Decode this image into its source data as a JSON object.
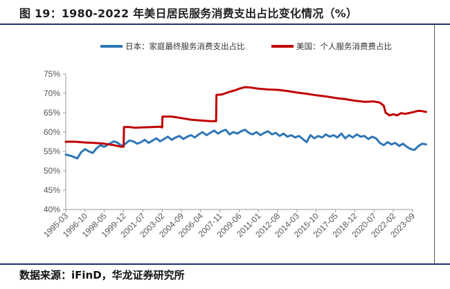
{
  "title": "图 19：1980-2022 年美日居民服务消费支出占比变化情况（%）",
  "source": "数据来源：iFinD，华龙证券研究所",
  "chart_data": {
    "type": "line",
    "x_labels": [
      "1995-03",
      "1996-10",
      "1998-05",
      "1999-12",
      "2001-07",
      "2003-02",
      "2004-09",
      "2006-04",
      "2007-11",
      "2009-06",
      "2011-01",
      "2012-08",
      "2014-03",
      "2015-10",
      "2017-05",
      "2018-12",
      "2020-07",
      "2022-02",
      "2023-09"
    ],
    "y_ticks": [
      "40%",
      "45%",
      "50%",
      "55%",
      "60%",
      "65%",
      "70%",
      "75%"
    ],
    "ylim": [
      40,
      75
    ],
    "grid": false,
    "legend_position": "top",
    "series": [
      {
        "name": "日本：家庭最终服务消费支出占比",
        "color": "#2e75b6",
        "points": [
          [
            0,
            54.2
          ],
          [
            0.3,
            53.8
          ],
          [
            0.6,
            53.2
          ],
          [
            0.8,
            54.8
          ],
          [
            1.0,
            55.6
          ],
          [
            1.2,
            55.0
          ],
          [
            1.4,
            54.6
          ],
          [
            1.6,
            55.8
          ],
          [
            1.8,
            56.6
          ],
          [
            2.0,
            56.2
          ],
          [
            2.2,
            56.8
          ],
          [
            2.5,
            57.6
          ],
          [
            2.7,
            57.2
          ],
          [
            2.9,
            56.4
          ],
          [
            3.1,
            57.0
          ],
          [
            3.3,
            57.8
          ],
          [
            3.5,
            57.6
          ],
          [
            3.7,
            57.0
          ],
          [
            3.9,
            57.4
          ],
          [
            4.1,
            58.0
          ],
          [
            4.3,
            57.2
          ],
          [
            4.5,
            57.8
          ],
          [
            4.7,
            58.4
          ],
          [
            4.9,
            57.6
          ],
          [
            5.1,
            58.2
          ],
          [
            5.3,
            58.8
          ],
          [
            5.5,
            58.0
          ],
          [
            5.7,
            58.6
          ],
          [
            5.9,
            59.0
          ],
          [
            6.1,
            58.2
          ],
          [
            6.3,
            58.8
          ],
          [
            6.5,
            59.2
          ],
          [
            6.7,
            58.6
          ],
          [
            6.9,
            59.4
          ],
          [
            7.1,
            60.0
          ],
          [
            7.3,
            59.2
          ],
          [
            7.5,
            59.8
          ],
          [
            7.7,
            60.4
          ],
          [
            7.9,
            59.6
          ],
          [
            8.1,
            60.2
          ],
          [
            8.3,
            60.6
          ],
          [
            8.5,
            59.4
          ],
          [
            8.7,
            60.0
          ],
          [
            8.9,
            59.6
          ],
          [
            9.1,
            60.2
          ],
          [
            9.3,
            60.6
          ],
          [
            9.5,
            59.8
          ],
          [
            9.7,
            59.4
          ],
          [
            9.9,
            60.0
          ],
          [
            10.1,
            59.2
          ],
          [
            10.3,
            59.8
          ],
          [
            10.5,
            60.2
          ],
          [
            10.7,
            59.4
          ],
          [
            10.9,
            59.8
          ],
          [
            11.1,
            59.0
          ],
          [
            11.3,
            59.6
          ],
          [
            11.5,
            58.8
          ],
          [
            11.7,
            59.2
          ],
          [
            11.9,
            58.6
          ],
          [
            12.1,
            59.0
          ],
          [
            12.3,
            58.2
          ],
          [
            12.5,
            57.4
          ],
          [
            12.7,
            59.2
          ],
          [
            12.9,
            58.4
          ],
          [
            13.1,
            59.0
          ],
          [
            13.3,
            58.6
          ],
          [
            13.5,
            59.4
          ],
          [
            13.7,
            58.8
          ],
          [
            13.9,
            59.2
          ],
          [
            14.1,
            58.6
          ],
          [
            14.3,
            59.6
          ],
          [
            14.5,
            58.4
          ],
          [
            14.7,
            59.2
          ],
          [
            14.9,
            58.6
          ],
          [
            15.1,
            59.4
          ],
          [
            15.3,
            58.8
          ],
          [
            15.5,
            59.0
          ],
          [
            15.7,
            58.2
          ],
          [
            15.9,
            58.8
          ],
          [
            16.1,
            58.4
          ],
          [
            16.3,
            57.2
          ],
          [
            16.5,
            56.6
          ],
          [
            16.7,
            57.4
          ],
          [
            16.9,
            56.8
          ],
          [
            17.1,
            57.2
          ],
          [
            17.3,
            56.4
          ],
          [
            17.5,
            57.0
          ],
          [
            17.7,
            56.2
          ],
          [
            17.9,
            55.6
          ],
          [
            18.1,
            55.4
          ],
          [
            18.3,
            56.4
          ],
          [
            18.5,
            57.0
          ],
          [
            18.7,
            56.8
          ]
        ]
      },
      {
        "name": "美国：个人服务消费费占比",
        "color": "#c00000",
        "points": [
          [
            0,
            57.5
          ],
          [
            0.5,
            57.5
          ],
          [
            1.0,
            57.3
          ],
          [
            1.5,
            57.2
          ],
          [
            2.0,
            57.0
          ],
          [
            2.5,
            56.6
          ],
          [
            2.9,
            56.2
          ],
          [
            3.0,
            56.2
          ],
          [
            3.02,
            61.3
          ],
          [
            3.3,
            61.3
          ],
          [
            3.6,
            61.1
          ],
          [
            4.0,
            61.2
          ],
          [
            4.5,
            61.3
          ],
          [
            4.9,
            61.4
          ],
          [
            5.0,
            61.2
          ],
          [
            5.02,
            64.0
          ],
          [
            5.5,
            64.0
          ],
          [
            6.0,
            63.6
          ],
          [
            6.5,
            63.2
          ],
          [
            7.0,
            63.0
          ],
          [
            7.5,
            62.8
          ],
          [
            7.8,
            62.8
          ],
          [
            7.82,
            69.6
          ],
          [
            8.1,
            69.7
          ],
          [
            8.5,
            70.4
          ],
          [
            8.8,
            70.8
          ],
          [
            9.0,
            71.2
          ],
          [
            9.3,
            71.6
          ],
          [
            9.6,
            71.5
          ],
          [
            10.0,
            71.2
          ],
          [
            10.5,
            71.0
          ],
          [
            11.0,
            70.9
          ],
          [
            11.5,
            70.6
          ],
          [
            12.0,
            70.2
          ],
          [
            12.5,
            69.9
          ],
          [
            13.0,
            69.5
          ],
          [
            13.5,
            69.2
          ],
          [
            14.0,
            68.8
          ],
          [
            14.5,
            68.5
          ],
          [
            15.0,
            68.1
          ],
          [
            15.5,
            67.8
          ],
          [
            16.0,
            67.9
          ],
          [
            16.3,
            67.6
          ],
          [
            16.5,
            66.8
          ],
          [
            16.6,
            65.0
          ],
          [
            16.8,
            64.3
          ],
          [
            17.0,
            64.6
          ],
          [
            17.2,
            64.3
          ],
          [
            17.4,
            64.9
          ],
          [
            17.6,
            64.7
          ],
          [
            17.8,
            64.9
          ],
          [
            18.0,
            65.1
          ],
          [
            18.3,
            65.5
          ],
          [
            18.5,
            65.4
          ],
          [
            18.7,
            65.2
          ]
        ]
      }
    ]
  }
}
